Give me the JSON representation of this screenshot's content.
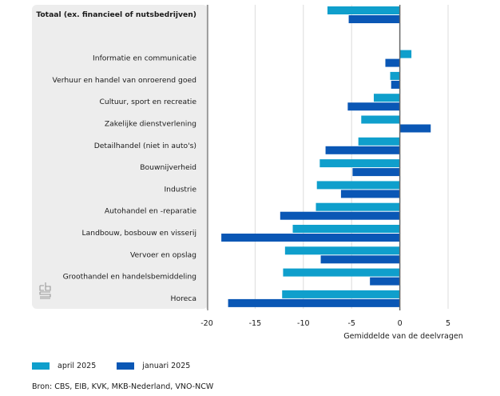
{
  "chart_data": {
    "type": "bar",
    "orientation": "horizontal",
    "title": "",
    "xlabel": "Gemiddelde van de deelvragen",
    "ylabel": "",
    "xlim": [
      -20,
      5
    ],
    "xticks": [
      -20,
      -15,
      -10,
      -5,
      0,
      5
    ],
    "grid": true,
    "legend_position": "bottom-left",
    "categories": [
      "Totaal (ex. financieel of nutsbedrijven)",
      "",
      "Informatie en communicatie",
      "Verhuur en handel van onroerend goed",
      "Cultuur, sport en recreatie",
      "Zakelijke dienstverlening",
      "Detailhandel (niet in auto's)",
      "Bouwnijverheid",
      "Industrie",
      "Autohandel en -reparatie",
      "Landbouw, bosbouw en visserij",
      "Vervoer en opslag",
      "Groothandel en handelsbemiddeling",
      "Horeca"
    ],
    "bold_categories": [
      0
    ],
    "series": [
      {
        "name": "april 2025",
        "color": "#0f9fcc",
        "values": [
          -7.5,
          null,
          1.2,
          -1.0,
          -2.7,
          -4.0,
          -4.3,
          -8.3,
          -8.6,
          -8.7,
          -11.1,
          -11.9,
          -12.1,
          -12.2
        ]
      },
      {
        "name": "januari 2025",
        "color": "#0a57b5",
        "values": [
          -5.3,
          null,
          -1.5,
          -0.9,
          -5.4,
          3.2,
          -7.7,
          -4.9,
          -6.1,
          -12.4,
          -18.5,
          -8.2,
          -3.1,
          -17.8
        ]
      }
    ]
  },
  "legend": [
    {
      "label": "april 2025",
      "color": "#0f9fcc"
    },
    {
      "label": "januari 2025",
      "color": "#0a57b5"
    }
  ],
  "source": "Bron: CBS, EIB, KVK, MKB-Nederland, VNO-NCW",
  "logo": "cbs-logo-icon",
  "colors": {
    "panel": "#ededed",
    "grid": "#dcdcdc",
    "zero_axis": "#666666"
  }
}
